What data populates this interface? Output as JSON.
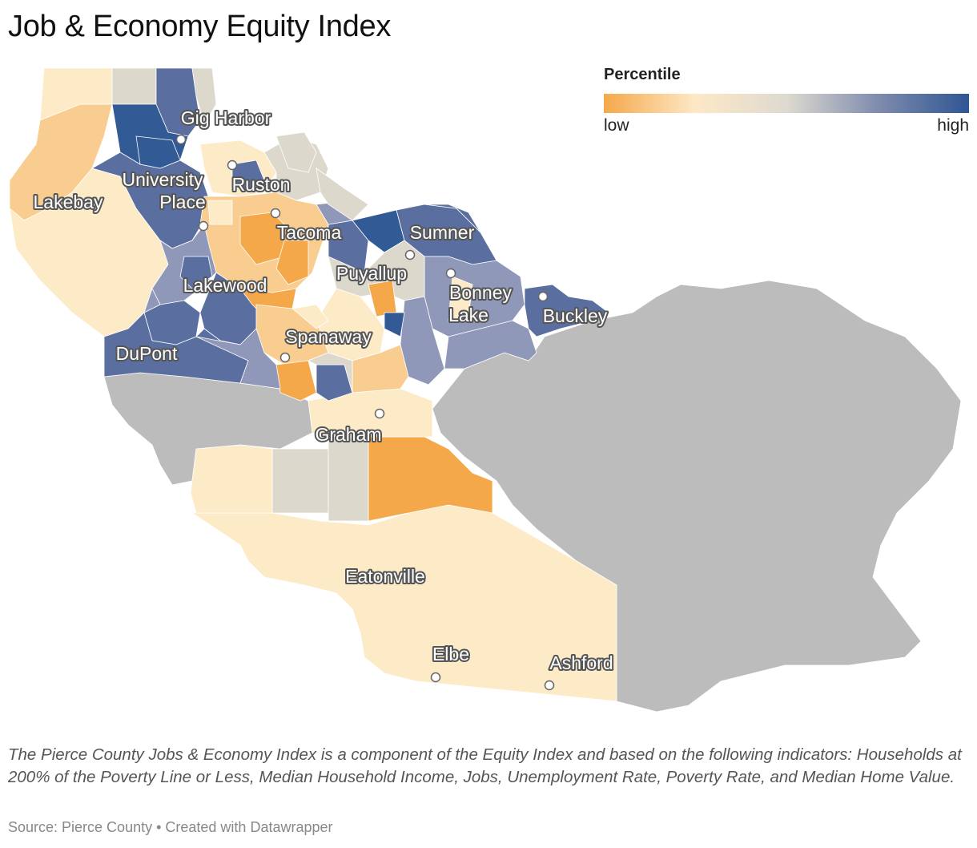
{
  "title": "Job & Economy Equity Index",
  "legend": {
    "title": "Percentile",
    "low_label": "low",
    "high_label": "high",
    "gradient": [
      "#f5a84a",
      "#fde8c6",
      "#dedad0",
      "#7f8cad",
      "#2f5694"
    ]
  },
  "colors": {
    "no_data": "#bcbcbc",
    "low": "#f5a84a",
    "low_mid": "#f9cc8f",
    "light": "#fdebc8",
    "neutral": "#ddd8cc",
    "mid_high": "#8f98b8",
    "high": "#5a6fa0",
    "very_high": "#325a94"
  },
  "cities": [
    {
      "name": "Gig Harbor"
    },
    {
      "name": "University Place"
    },
    {
      "name": "Ruston"
    },
    {
      "name": "Lakebay"
    },
    {
      "name": "Tacoma"
    },
    {
      "name": "Sumner"
    },
    {
      "name": "Puyallup"
    },
    {
      "name": "Bonney Lake"
    },
    {
      "name": "Lakewood"
    },
    {
      "name": "Buckley"
    },
    {
      "name": "Spanaway"
    },
    {
      "name": "DuPont"
    },
    {
      "name": "Graham"
    },
    {
      "name": "Eatonville"
    },
    {
      "name": "Elbe"
    },
    {
      "name": "Ashford"
    }
  ],
  "description": "The Pierce County Jobs & Economy Index is a component of the Equity Index and based on the following indicators: Households at 200% of the Poverty Line or Less, Median Household Income, Jobs, Unemployment Rate, Poverty Rate, and Median Home Value.",
  "source": "Source: Pierce County • Created with Datawrapper"
}
